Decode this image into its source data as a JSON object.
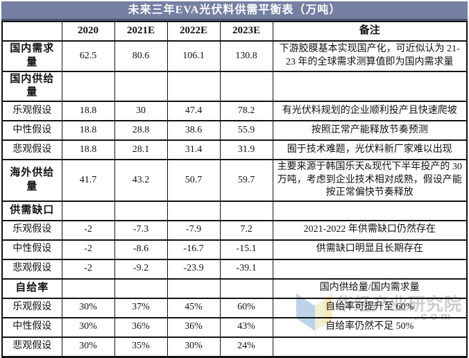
{
  "page_title": "未来三年EVA光伏料供需平衡表（万吨）",
  "colors": {
    "title_bg": "#747fa2",
    "title_border": "#4d5676",
    "title_text": "#ffffff",
    "table_border": "#111111",
    "watermark_text": "#919191",
    "logo_blue": "#a9c5e4",
    "logo_yellow": "#f3e4a6"
  },
  "chart_data": {
    "type": "table",
    "title": "未来三年EVA光伏料供需平衡表（万吨）",
    "columns": [
      "",
      "2020",
      "2021E",
      "2022E",
      "2023E",
      "备注"
    ],
    "rows": [
      {
        "type": "section",
        "label": "国内需求量",
        "values": [
          "62.5",
          "80.6",
          "106.1",
          "130.8"
        ],
        "note": "下游胶膜基本实现国产化，可近似认为 21-23 年的全球需求测算值即为国内需求量"
      },
      {
        "type": "section",
        "label": "国内供给量",
        "values": [
          "",
          "",
          "",
          ""
        ],
        "note": ""
      },
      {
        "type": "normal",
        "label": "乐观假设",
        "values": [
          "18.8",
          "30",
          "47.4",
          "78.2"
        ],
        "note": "有光伏料规划的企业顺利投产且快速爬坡"
      },
      {
        "type": "normal",
        "label": "中性假设",
        "values": [
          "18.8",
          "28.8",
          "38.6",
          "55.9"
        ],
        "note": "按照正常产能释放节奏预测"
      },
      {
        "type": "normal",
        "label": "悲观假设",
        "values": [
          "18.8",
          "28.1",
          "31.4",
          "31.9"
        ],
        "note": "囿于技术难题，光伏料新厂家难以出现"
      },
      {
        "type": "section",
        "label": "海外供给量",
        "values": [
          "41.7",
          "43.2",
          "50.7",
          "59.7"
        ],
        "note": "主要来源于韩国乐天&现代下半年投产的 30万吨，考虑到企业技术相对成熟，假设产能按正常偏快节奏释放"
      },
      {
        "type": "section",
        "label": "供需缺口",
        "values": [
          "",
          "",
          "",
          ""
        ],
        "note": ""
      },
      {
        "type": "normal",
        "label": "乐观假设",
        "values": [
          "-2",
          "-7.3",
          "-7.9",
          "7.2"
        ],
        "note": "2021-2022 年供需缺口仍然存在"
      },
      {
        "type": "normal",
        "label": "中性假设",
        "values": [
          "-2",
          "-8.6",
          "-16.7",
          "-15.1"
        ],
        "note": "供需缺口明显且长期存在"
      },
      {
        "type": "normal",
        "label": "悲观假设",
        "values": [
          "-2",
          "-9.2",
          "-23.9",
          "-39.1"
        ],
        "note": ""
      },
      {
        "type": "section",
        "label": "自给率",
        "values": [
          "",
          "",
          "",
          ""
        ],
        "note": "国内供给量/国内需求量"
      },
      {
        "type": "normal",
        "label": "乐观假设",
        "values": [
          "30%",
          "37%",
          "45%",
          "60%"
        ],
        "note": "自给率可提升至 60%"
      },
      {
        "type": "normal",
        "label": "中性假设",
        "values": [
          "30%",
          "36%",
          "36%",
          "43%"
        ],
        "note": "自给率仍然不足 50%"
      },
      {
        "type": "normal",
        "label": "悲观假设",
        "values": [
          "30%",
          "35%",
          "30%",
          "24%"
        ],
        "note": ""
      }
    ]
  },
  "watermark": {
    "brand": "华经产业研究院",
    "suffix": ".com"
  }
}
